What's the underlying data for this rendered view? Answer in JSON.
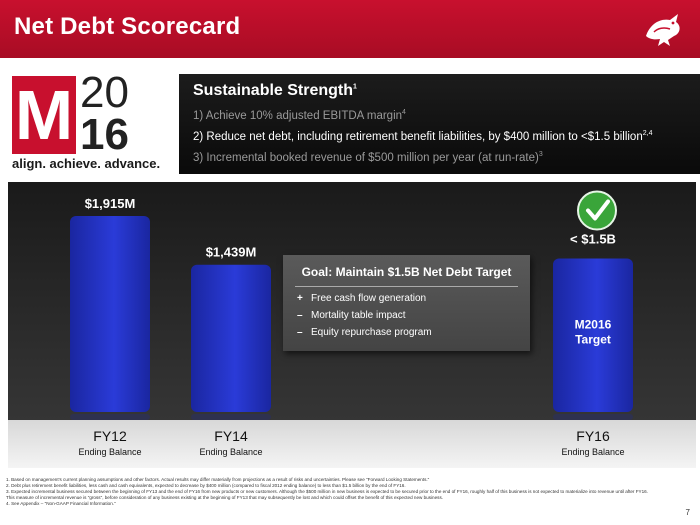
{
  "header": {
    "title": "Net Debt Scorecard"
  },
  "logo": {
    "m": "M",
    "year_top": "20",
    "year_bottom": "16",
    "tagline": "align. achieve. advance."
  },
  "strength": {
    "title": "Sustainable Strength",
    "title_sup": "1",
    "items": [
      {
        "text": "1) Achieve 10% adjusted EBITDA margin",
        "sup": "4"
      },
      {
        "text": "2) Reduce net debt, including retirement benefit liabilities, by $400 million to <$1.5 billion",
        "sup": "2,4"
      },
      {
        "text": "3) Incremental booked revenue of $500 million per year (at run-rate)",
        "sup": "3"
      }
    ]
  },
  "goal": {
    "title": "Goal: Maintain $1.5B Net Debt Target",
    "items": [
      {
        "marker": "+",
        "text": "Free cash flow generation"
      },
      {
        "marker": "–",
        "text": "Mortality table impact"
      },
      {
        "marker": "–",
        "text": "Equity repurchase program"
      }
    ]
  },
  "chart_data": {
    "type": "bar",
    "categories": [
      "FY12",
      "FY14",
      "FY16"
    ],
    "sublabels": [
      "Ending Balance",
      "Ending Balance",
      "Ending Balance"
    ],
    "values": [
      1915,
      1439,
      1500
    ],
    "value_labels": [
      "$1,915M",
      "$1,439M",
      "< $1.5B"
    ],
    "bar_inner_labels": [
      "",
      "",
      "M2016\nTarget"
    ],
    "unit": "$M",
    "ylim": [
      0,
      2100
    ],
    "grid": false,
    "target_check_on": "FY16",
    "colors": {
      "bar": "#2a3bd8",
      "bar_dark": "#1a26a0",
      "check": "#3aa53a"
    }
  },
  "footnotes": [
    "1.   Based on management's current planning assumptions and other factors. Actual results may differ materially from projections as a result of risks and uncertainties. Please see \"Forward Looking Statements.\"",
    "2.   Debt plus retirement benefit liabilities, less cash and cash equivalents, expected to decrease by $400 million (compared to fiscal 2012 ending balance) to less than $1.5 billion by the end of FY16.",
    "3.   Expected incremental business secured between the beginning of FY13 and the end of FY16 from new products or new customers. Although the $500 million in new business is expected to be secured prior to the end of FY16, roughly half of this business is not expected to materialize into revenue until after FY16.",
    "      This measure of incremental revenue is \"gross\", before consideration of any business existing at the beginning of FY13 that may subsequently be lost and which could offset the benefit of this expected new business.",
    "4.   See Appendix – \"Non-GAAP Financial Information.\""
  ],
  "page_number": "7"
}
